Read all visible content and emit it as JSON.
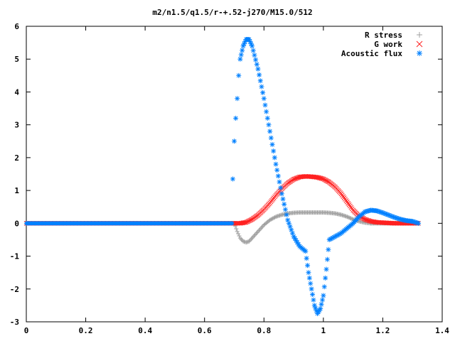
{
  "chart_data": {
    "type": "scatter",
    "title": "m2/n1.5/q1.5/r-+.52-j270/M15.0/512",
    "xlabel": "",
    "ylabel": "",
    "xlim": [
      0,
      1.4
    ],
    "ylim": [
      -3,
      6
    ],
    "x_ticks": [
      "0",
      "0.2",
      "0.4",
      "0.6",
      "0.8",
      "1",
      "1.2",
      "1.4"
    ],
    "y_ticks": [
      "-3",
      "-2",
      "-1",
      "0",
      "1",
      "2",
      "3",
      "4",
      "5",
      "6"
    ],
    "grid": false,
    "legend_position": "top-right",
    "series": [
      {
        "name": "R stress",
        "marker": "+",
        "color": "#a0a0a0",
        "x": [
          0.7,
          0.71,
          0.72,
          0.73,
          0.74,
          0.75,
          0.76,
          0.78,
          0.8,
          0.82,
          0.84,
          0.86,
          0.88,
          0.9,
          0.92,
          0.94,
          0.96,
          0.98,
          1.0,
          1.02,
          1.04,
          1.06,
          1.08,
          1.1,
          1.12,
          1.14,
          1.16
        ],
        "y": [
          0.0,
          -0.25,
          -0.45,
          -0.55,
          -0.58,
          -0.55,
          -0.45,
          -0.25,
          -0.05,
          0.1,
          0.2,
          0.26,
          0.3,
          0.32,
          0.33,
          0.33,
          0.33,
          0.33,
          0.33,
          0.32,
          0.3,
          0.26,
          0.2,
          0.12,
          0.06,
          0.02,
          0.0
        ]
      },
      {
        "name": "G work",
        "marker": "x",
        "color": "#ff2020",
        "x": [
          0.7,
          0.72,
          0.74,
          0.76,
          0.78,
          0.8,
          0.82,
          0.84,
          0.86,
          0.88,
          0.9,
          0.92,
          0.94,
          0.96,
          0.98,
          1.0,
          1.02,
          1.04,
          1.06,
          1.08,
          1.1,
          1.12,
          1.14,
          1.16,
          1.18,
          1.2,
          1.22,
          1.24,
          1.26,
          1.28,
          1.3,
          1.32
        ],
        "y": [
          0.0,
          0.0,
          0.03,
          0.12,
          0.25,
          0.42,
          0.62,
          0.85,
          1.05,
          1.22,
          1.34,
          1.41,
          1.43,
          1.42,
          1.4,
          1.35,
          1.25,
          1.1,
          0.9,
          0.65,
          0.4,
          0.22,
          0.12,
          0.06,
          0.03,
          0.02,
          0.01,
          0.0,
          0.0,
          0.0,
          0.0,
          0.0
        ]
      },
      {
        "name": "Acoustic flux",
        "marker": "*",
        "color": "#0080ff",
        "x": [
          0.695,
          0.7,
          0.705,
          0.71,
          0.715,
          0.72,
          0.73,
          0.74,
          0.75,
          0.76,
          0.78,
          0.8,
          0.82,
          0.84,
          0.86,
          0.88,
          0.9,
          0.92,
          0.94,
          0.95,
          0.96,
          0.97,
          0.98,
          0.99,
          1.0,
          1.01,
          1.02,
          1.04,
          1.06,
          1.08,
          1.1,
          1.12,
          1.14,
          1.16,
          1.18,
          1.2,
          1.22,
          1.24,
          1.26,
          1.28,
          1.3,
          1.32
        ],
        "y": [
          1.35,
          2.5,
          3.2,
          3.8,
          4.5,
          5.0,
          5.4,
          5.6,
          5.6,
          5.4,
          4.7,
          3.8,
          2.8,
          1.8,
          0.9,
          0.1,
          -0.4,
          -0.7,
          -0.85,
          -1.5,
          -2.0,
          -2.5,
          -2.75,
          -2.6,
          -2.2,
          -1.4,
          -0.5,
          -0.4,
          -0.3,
          -0.15,
          0.0,
          0.2,
          0.35,
          0.4,
          0.38,
          0.32,
          0.25,
          0.18,
          0.12,
          0.08,
          0.06,
          0.0
        ]
      }
    ]
  }
}
